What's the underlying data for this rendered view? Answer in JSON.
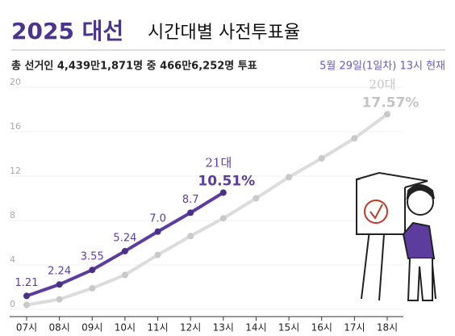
{
  "chart_data": {
    "type": "line",
    "title": [
      "2025 대선",
      "시간대별 사전투표율"
    ],
    "notes": [
      "총 선거인 4,439만1,871명 중 466만6,252명 투표",
      "5월 29일(1일차) 13시 현재"
    ],
    "categories": [
      "07시",
      "08시",
      "09시",
      "10시",
      "11시",
      "12시",
      "13시",
      "14시",
      "15시",
      "16시",
      "17시",
      "18시"
    ],
    "series": [
      {
        "name": "20대",
        "color": "#dcdcdc",
        "marker": "#c9c9c9",
        "label_color": "#c4c4c4",
        "values": [
          0.4,
          0.9,
          1.9,
          3.1,
          4.9,
          6.6,
          8.2,
          10.0,
          11.9,
          13.6,
          15.4,
          17.57
        ],
        "value_labels": [
          null,
          null,
          null,
          null,
          null,
          null,
          null,
          null,
          null,
          null,
          null,
          "17.57%"
        ]
      },
      {
        "name": "21대",
        "color": "#5c3d9e",
        "marker": "#4b2f8a",
        "label_color": "#5c3d9e",
        "values": [
          1.21,
          2.24,
          3.55,
          5.24,
          7,
          8.7,
          10.51,
          null,
          null,
          null,
          null,
          null
        ],
        "value_labels": [
          "1.21",
          "2.24",
          "3.55",
          "5.24",
          "7.0",
          "8.7",
          "10.51%",
          null,
          null,
          null,
          null,
          null
        ]
      }
    ],
    "ylim": [
      0,
      20
    ],
    "yticks": [
      0,
      4,
      8,
      12,
      16,
      20
    ],
    "grid": true
  }
}
